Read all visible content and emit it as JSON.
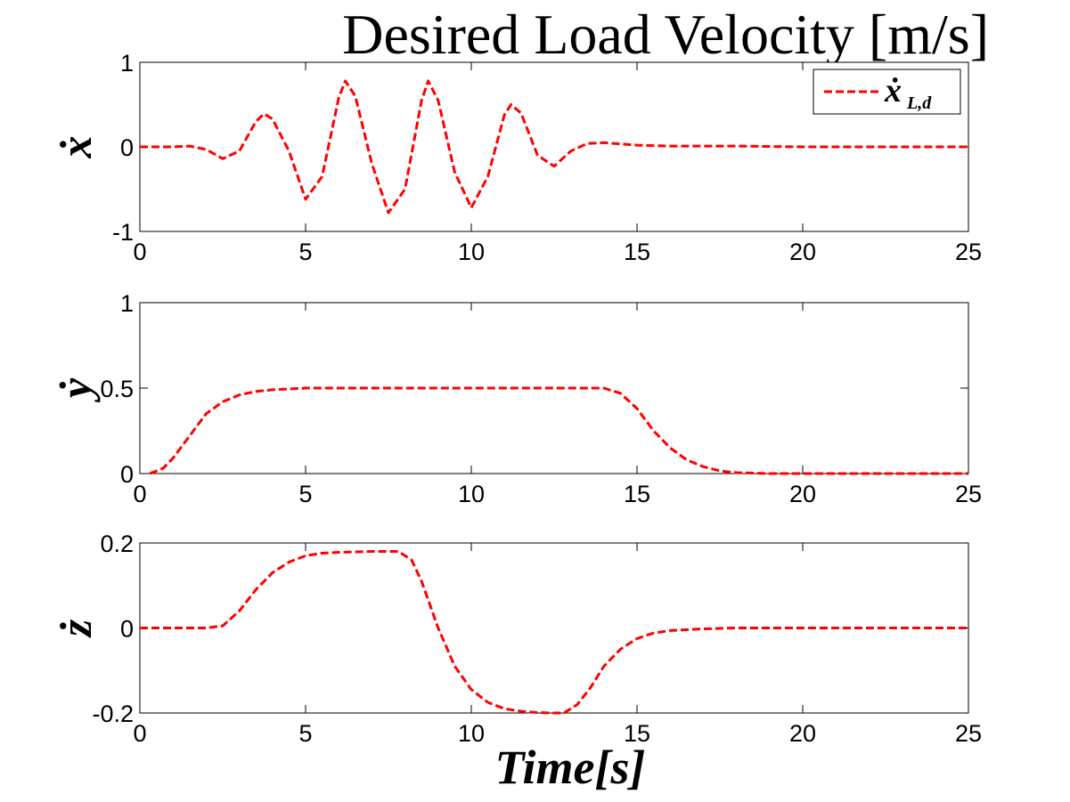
{
  "figure": {
    "title": "Desired Load Velocity [m/s]",
    "xlabel": "Time[s]",
    "legend": "ẋ",
    "legend_sub": "L,d",
    "line_color": "#ff0000"
  },
  "chart_data": [
    {
      "type": "line",
      "ylabel": "ẋ",
      "xlim": [
        0,
        25
      ],
      "ylim": [
        -1,
        1
      ],
      "xticks": [
        "0",
        "5",
        "10",
        "15",
        "20",
        "25"
      ],
      "yticks": [
        "-1",
        "0",
        "1"
      ],
      "grid": false,
      "legend_position": "top-right",
      "series": [
        {
          "name": "ẋL,d",
          "x": [
            0,
            1,
            1.5,
            2,
            2.5,
            3,
            3.5,
            3.75,
            4,
            4.5,
            5,
            5.5,
            6,
            6.2,
            6.5,
            7,
            7.5,
            8,
            8.5,
            8.7,
            9,
            9.5,
            10,
            10.5,
            11,
            11.2,
            11.5,
            12,
            12.5,
            13,
            13.5,
            14,
            15,
            16,
            18,
            20,
            25
          ],
          "y": [
            0,
            0,
            0.01,
            -0.03,
            -0.14,
            -0.05,
            0.3,
            0.39,
            0.33,
            -0.05,
            -0.62,
            -0.35,
            0.58,
            0.78,
            0.6,
            -0.2,
            -0.78,
            -0.5,
            0.55,
            0.78,
            0.55,
            -0.3,
            -0.72,
            -0.35,
            0.38,
            0.5,
            0.4,
            -0.1,
            -0.23,
            -0.05,
            0.04,
            0.05,
            0.02,
            0.01,
            0.01,
            0,
            0
          ]
        }
      ]
    },
    {
      "type": "line",
      "ylabel": "ẏ",
      "xlim": [
        0,
        25
      ],
      "ylim": [
        0,
        1
      ],
      "xticks": [
        "0",
        "5",
        "10",
        "15",
        "20",
        "25"
      ],
      "yticks": [
        "0",
        "0.5",
        "1"
      ],
      "grid": false,
      "series": [
        {
          "name": "ẏL,d",
          "x": [
            0.3,
            0.7,
            1,
            1.5,
            2,
            2.5,
            3,
            3.5,
            4,
            5,
            6,
            8,
            10,
            12,
            14,
            14.5,
            15,
            15.5,
            16,
            16.5,
            17,
            17.5,
            18,
            19,
            25
          ],
          "y": [
            0,
            0.03,
            0.09,
            0.22,
            0.35,
            0.42,
            0.46,
            0.48,
            0.49,
            0.5,
            0.5,
            0.5,
            0.5,
            0.5,
            0.5,
            0.47,
            0.38,
            0.25,
            0.15,
            0.08,
            0.04,
            0.015,
            0.005,
            0,
            0
          ]
        }
      ]
    },
    {
      "type": "line",
      "ylabel": "ż",
      "xlim": [
        0,
        25
      ],
      "ylim": [
        -0.2,
        0.2
      ],
      "xticks": [
        "0",
        "5",
        "10",
        "15",
        "20",
        "25"
      ],
      "yticks": [
        "-0.2",
        "0",
        "0.2"
      ],
      "grid": false,
      "series": [
        {
          "name": "żL,d",
          "x": [
            0,
            1,
            2,
            2.5,
            3,
            3.5,
            4,
            4.5,
            5,
            5.5,
            6,
            7,
            7.8,
            8.2,
            8.5,
            9,
            9.5,
            10,
            10.5,
            11,
            11.5,
            12,
            12.5,
            12.8,
            13.2,
            13.6,
            14,
            14.5,
            15,
            15.5,
            16,
            17,
            18,
            20,
            25
          ],
          "y": [
            0,
            0,
            0,
            0.005,
            0.04,
            0.09,
            0.13,
            0.155,
            0.17,
            0.176,
            0.178,
            0.18,
            0.18,
            0.16,
            0.11,
            0.0,
            -0.09,
            -0.145,
            -0.175,
            -0.19,
            -0.196,
            -0.199,
            -0.2,
            -0.2,
            -0.18,
            -0.14,
            -0.09,
            -0.05,
            -0.025,
            -0.012,
            -0.006,
            -0.002,
            0,
            0,
            0
          ]
        }
      ]
    }
  ]
}
